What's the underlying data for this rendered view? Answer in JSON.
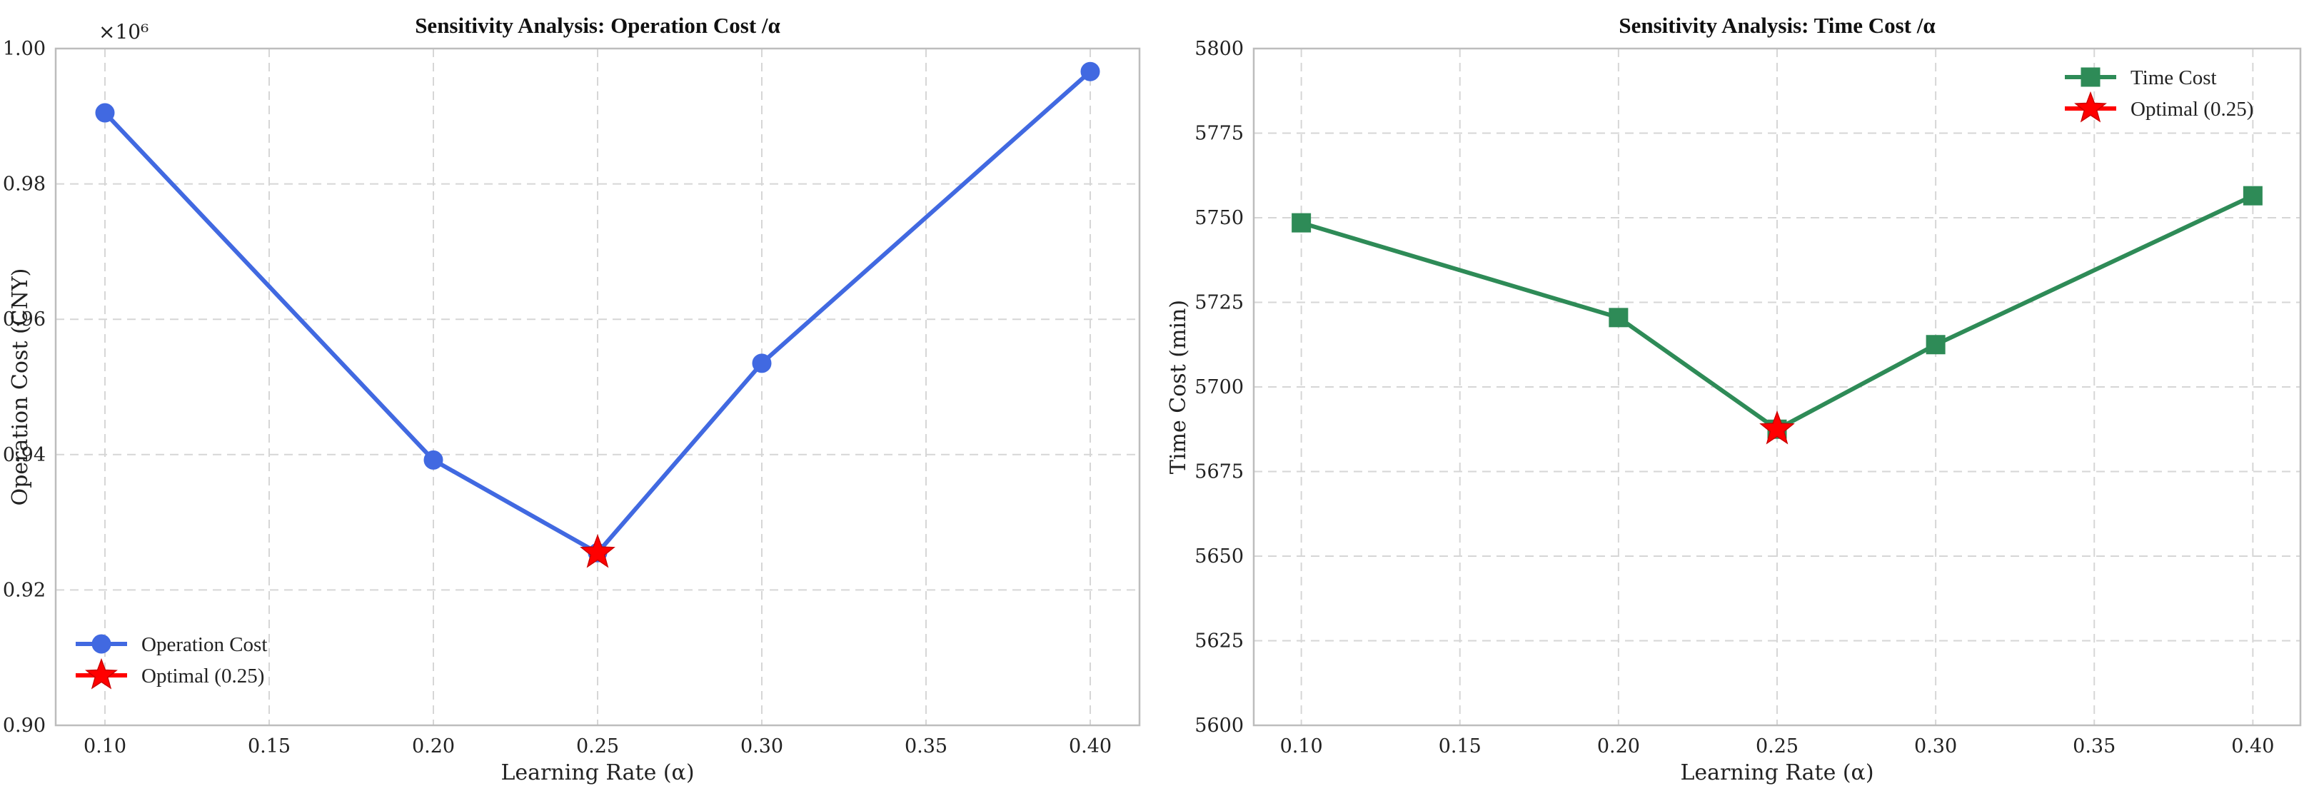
{
  "chart_data": [
    {
      "type": "line",
      "title": "Sensitivity Analysis: Operation Cost /α",
      "xlabel": "Learning Rate (α)",
      "ylabel": "Operation Cost (CNY)",
      "y_multiplier": "×10⁶",
      "xlim": [
        0.085,
        0.415
      ],
      "ylim": [
        0.9,
        1.0
      ],
      "x_ticks": [
        "0.10",
        "0.15",
        "0.20",
        "0.25",
        "0.30",
        "0.35",
        "0.40"
      ],
      "y_ticks": [
        "0.90",
        "0.92",
        "0.94",
        "0.96",
        "0.98",
        "1.00"
      ],
      "grid": true,
      "legend_position": "lower-left",
      "series": [
        {
          "name": "Operation Cost",
          "x": [
            0.1,
            0.2,
            0.25,
            0.3,
            0.4
          ],
          "values": [
            0.9905,
            0.9392,
            0.9255,
            0.9535,
            0.9966
          ],
          "color": "#4169E1",
          "marker": "circle"
        },
        {
          "name": "Optimal (0.25)",
          "x": [
            0.25
          ],
          "values": [
            0.9255
          ],
          "color": "#FF0000",
          "marker": "star"
        }
      ]
    },
    {
      "type": "line",
      "title": "Sensitivity Analysis: Time Cost /α",
      "xlabel": "Learning Rate (α)",
      "ylabel": "Time Cost (min)",
      "xlim": [
        0.085,
        0.415
      ],
      "ylim": [
        5600,
        5800
      ],
      "x_ticks": [
        "0.10",
        "0.15",
        "0.20",
        "0.25",
        "0.30",
        "0.35",
        "0.40"
      ],
      "y_ticks": [
        "5600",
        "5625",
        "5650",
        "5675",
        "5700",
        "5725",
        "5750",
        "5775",
        "5800"
      ],
      "grid": true,
      "legend_position": "top-right",
      "series": [
        {
          "name": "Time Cost",
          "x": [
            0.1,
            0.2,
            0.25,
            0.3,
            0.4
          ],
          "values": [
            5748.5,
            5720.5,
            5687.5,
            5712.5,
            5756.5
          ],
          "color": "#2E8B57",
          "marker": "square"
        },
        {
          "name": "Optimal (0.25)",
          "x": [
            0.25
          ],
          "values": [
            5687.5
          ],
          "color": "#FF0000",
          "marker": "star"
        }
      ]
    }
  ]
}
